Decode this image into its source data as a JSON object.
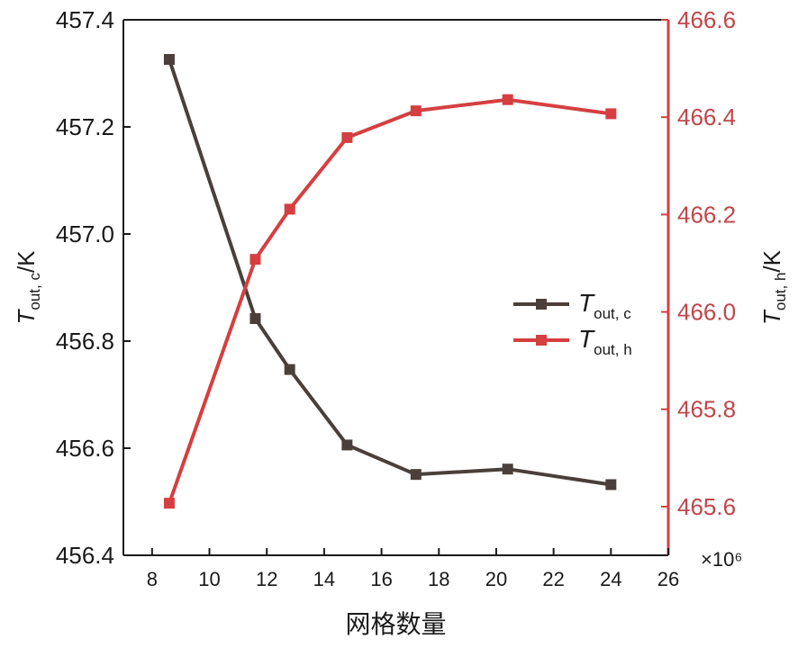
{
  "chart_data": {
    "type": "line",
    "xlabel": "网格数量",
    "x_multiplier": "×10⁶",
    "xlim": [
      7,
      26
    ],
    "xticks": [
      8,
      10,
      12,
      14,
      16,
      18,
      20,
      22,
      24,
      26
    ],
    "ylabel_left": {
      "main": "T",
      "sub": "out, c",
      "unit": "/K"
    },
    "ylabel_right": {
      "main": "T",
      "sub": "out, h",
      "unit": "/K"
    },
    "ylim_left": [
      456.4,
      457.4
    ],
    "yticks_left": [
      "456.4",
      "456.6",
      "456.8",
      "457.0",
      "457.2",
      "457.4"
    ],
    "ylim_right": [
      465.5,
      466.6
    ],
    "yticks_right": [
      "465.6",
      "465.8",
      "466.0",
      "466.2",
      "466.4",
      "466.6"
    ],
    "legend_position": "center-right",
    "series": [
      {
        "name_main": "T",
        "name_sub": "out, c",
        "axis": "left",
        "color": "#4a3f3b",
        "x": [
          8.6,
          11.6,
          12.8,
          14.8,
          17.2,
          20.4,
          24.0
        ],
        "values": [
          457.326,
          456.842,
          456.747,
          456.606,
          456.551,
          456.561,
          456.532
        ]
      },
      {
        "name_main": "T",
        "name_sub": "out, h",
        "axis": "right",
        "color": "#d53f41",
        "x": [
          8.6,
          11.6,
          12.8,
          14.8,
          17.2,
          20.4,
          24.0
        ],
        "values": [
          465.607,
          466.108,
          466.211,
          466.358,
          466.413,
          466.436,
          466.407
        ]
      }
    ]
  }
}
